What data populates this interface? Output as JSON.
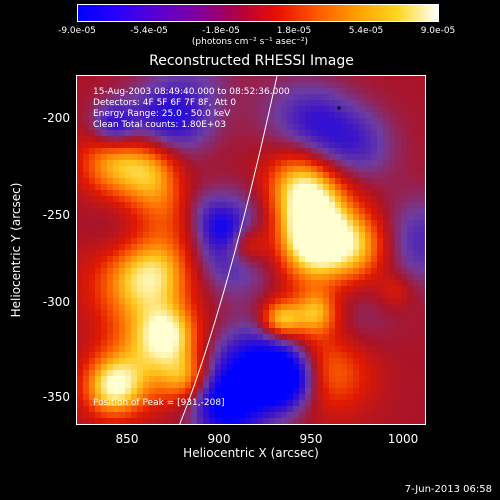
{
  "colorbar": {
    "tick_labels": [
      "-9.0e-05",
      "-5.4e-05",
      "-1.8e-05",
      "1.8e-05",
      "5.4e-05",
      "9.0e-05"
    ],
    "unit_label": "(photons cm⁻² s⁻¹ asec⁻²)",
    "colormap": [
      "#0000ff",
      "#2a00ff",
      "#5a00d0",
      "#8000a0",
      "#b00040",
      "#e81000",
      "#ff5a00",
      "#ffa000",
      "#ffd820",
      "#ffffff"
    ]
  },
  "image": {
    "title": "Reconstructed RHESSI Image",
    "time_range": "15-Aug-2003 08:49:40.000 to 08:52:36.000",
    "detectors": "Detectors: 4F 5F 6F 7F 8F, Att 0",
    "energy_range": "Energy Range: 25.0 - 50.0 keV",
    "clean_info": "Clean      Total counts: 1.80E+03",
    "peak_label": "Position of Peak = [931,-208]",
    "xaxis_title": "Heliocentric X (arcsec)",
    "yaxis_title": "Heliocentric Y (arcsec)",
    "xticks": [
      "850",
      "900",
      "950",
      "1000"
    ],
    "yticks": [
      "-200",
      "-250",
      "-300",
      "-350"
    ],
    "xlim": [
      819,
      1112
    ],
    "ylim": [
      -369,
      -166
    ]
  },
  "footer": {
    "timestamp": "7-Jun-2013 06:58"
  }
}
